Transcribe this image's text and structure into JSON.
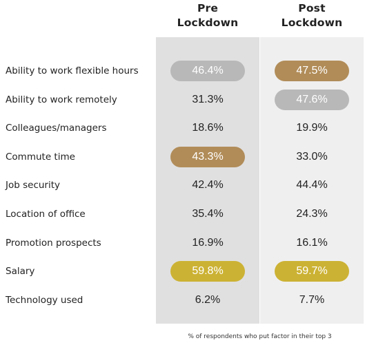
{
  "chart_data": {
    "type": "table",
    "title": "",
    "columns": [
      {
        "name_lines": [
          "Pre",
          "Lockdown"
        ]
      },
      {
        "name_lines": [
          "Post",
          "Lockdown"
        ]
      }
    ],
    "rows": [
      {
        "label": "Ability to work flexible hours",
        "values": [
          "46.4%",
          "47.5%"
        ],
        "highlight": [
          "grey",
          "bronze"
        ]
      },
      {
        "label": "Ability to work remotely",
        "values": [
          "31.3%",
          "47.6%"
        ],
        "highlight": [
          null,
          "grey"
        ]
      },
      {
        "label": "Colleagues/managers",
        "values": [
          "18.6%",
          "19.9%"
        ],
        "highlight": [
          null,
          null
        ]
      },
      {
        "label": "Commute time",
        "values": [
          "43.3%",
          "33.0%"
        ],
        "highlight": [
          "bronze",
          null
        ]
      },
      {
        "label": "Job security",
        "values": [
          "42.4%",
          "44.4%"
        ],
        "highlight": [
          null,
          null
        ]
      },
      {
        "label": "Location of office",
        "values": [
          "35.4%",
          "24.3%"
        ],
        "highlight": [
          null,
          null
        ]
      },
      {
        "label": "Promotion prospects",
        "values": [
          "16.9%",
          "16.1%"
        ],
        "highlight": [
          null,
          null
        ]
      },
      {
        "label": "Salary",
        "values": [
          "59.8%",
          "59.7%"
        ],
        "highlight": [
          "gold",
          "gold"
        ]
      },
      {
        "label": "Technology used",
        "values": [
          "6.2%",
          "7.7%"
        ],
        "highlight": [
          null,
          null
        ]
      }
    ],
    "footnote": "% of respondents who put factor in their top 3",
    "colors": {
      "pre_column_bg": "#e0e0e0",
      "post_column_bg": "#efefef",
      "highlight_grey": "#b8b8b8",
      "highlight_bronze": "#b18c58",
      "highlight_gold": "#ccb234"
    }
  }
}
